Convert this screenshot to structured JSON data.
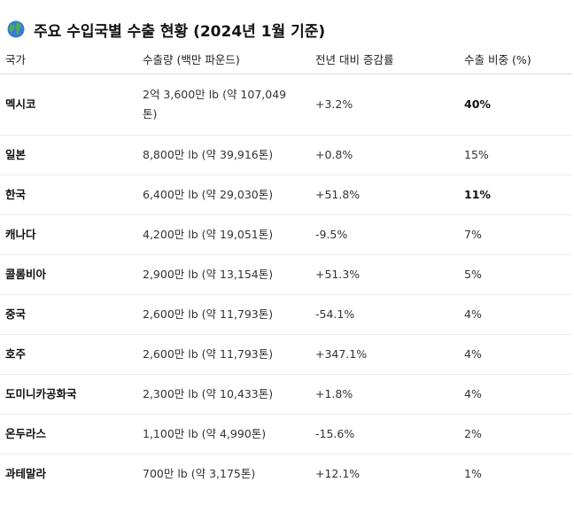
{
  "title": {
    "icon": "globe-icon",
    "text": "주요 수입국별 수출 현황 (2024년 1월 기준)"
  },
  "table": {
    "headers": [
      "국가",
      "수출량 (백만 파운드)",
      "전년 대비 증감률",
      "수출 비중 (%)"
    ],
    "rows": [
      {
        "country": "멕시코",
        "volume": "2억 3,600만 lb (약 107,049톤)",
        "change": "+3.2%",
        "share": "40%",
        "share_bold": true
      },
      {
        "country": "일본",
        "volume": "8,800만 lb (약 39,916톤)",
        "change": "+0.8%",
        "share": "15%",
        "share_bold": false
      },
      {
        "country": "한국",
        "volume": "6,400만 lb (약 29,030톤)",
        "change": "+51.8%",
        "share": "11%",
        "share_bold": true
      },
      {
        "country": "캐나다",
        "volume": "4,200만 lb (약 19,051톤)",
        "change": "-9.5%",
        "share": "7%",
        "share_bold": false
      },
      {
        "country": "콜롬비아",
        "volume": "2,900만 lb (약 13,154톤)",
        "change": "+51.3%",
        "share": "5%",
        "share_bold": false
      },
      {
        "country": "중국",
        "volume": "2,600만 lb (약 11,793톤)",
        "change": "-54.1%",
        "share": "4%",
        "share_bold": false
      },
      {
        "country": "호주",
        "volume": "2,600만 lb (약 11,793톤)",
        "change": "+347.1%",
        "share": "4%",
        "share_bold": false
      },
      {
        "country": "도미니카공화국",
        "volume": "2,300만 lb (약 10,433톤)",
        "change": "+1.8%",
        "share": "4%",
        "share_bold": false
      },
      {
        "country": "온두라스",
        "volume": "1,100만 lb (약 4,990톤)",
        "change": "-15.6%",
        "share": "2%",
        "share_bold": false
      },
      {
        "country": "과테말라",
        "volume": "700만 lb (약 3,175톤)",
        "change": "+12.1%",
        "share": "1%",
        "share_bold": false
      }
    ]
  }
}
